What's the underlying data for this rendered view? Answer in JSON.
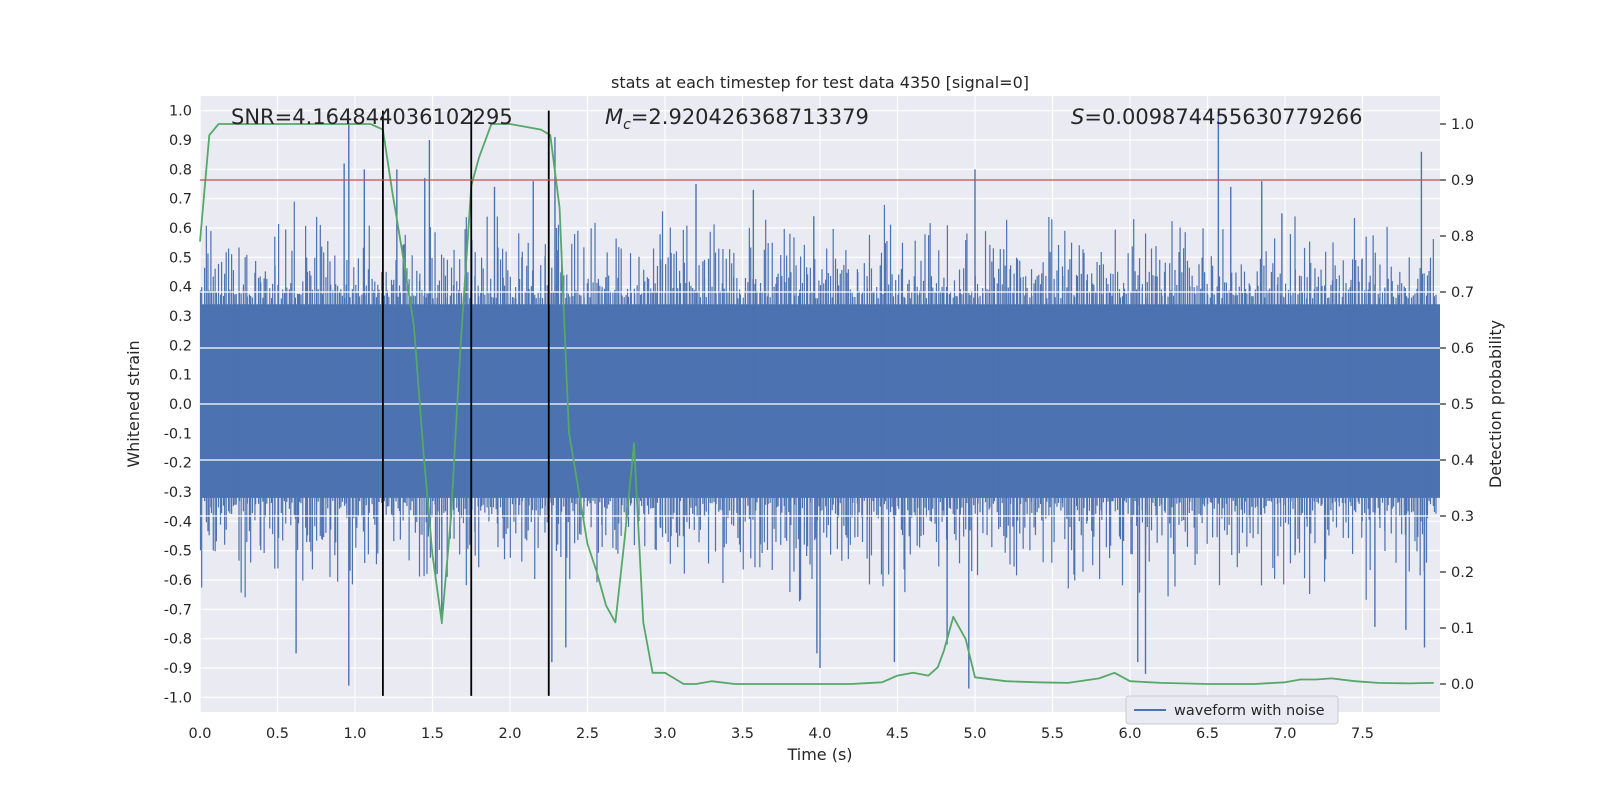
{
  "chart_data": {
    "type": "line",
    "title": "stats at each timestep for test data 4350 [signal=0]",
    "xlabel": "Time (s)",
    "ylabel_left": "Whitened strain",
    "ylabel_right": "Detection probability",
    "xlim": [
      0.0,
      8.0
    ],
    "ylim_left": [
      -1.05,
      1.05
    ],
    "ylim_right": [
      -0.05,
      1.05
    ],
    "grid": true,
    "x_ticks": [
      "0.0",
      "0.5",
      "1.0",
      "1.5",
      "2.0",
      "2.5",
      "3.0",
      "3.5",
      "4.0",
      "4.5",
      "5.0",
      "5.5",
      "6.0",
      "6.5",
      "7.0",
      "7.5"
    ],
    "y_left_ticks": [
      "1.0",
      "0.9",
      "0.8",
      "0.7",
      "0.6",
      "0.5",
      "0.4",
      "0.3",
      "0.2",
      "0.1",
      "0.0",
      "-0.1",
      "-0.2",
      "-0.3",
      "-0.4",
      "-0.5",
      "-0.6",
      "-0.7",
      "-0.8",
      "-0.9",
      "-1.0"
    ],
    "y_right_ticks": [
      "1.0",
      "0.9",
      "0.8",
      "0.7",
      "0.6",
      "0.5",
      "0.4",
      "0.3",
      "0.2",
      "0.1",
      "0.0"
    ],
    "annotations": {
      "snr": "SNR=4.164844036102295",
      "mc_symbol": "M",
      "mc_sub": "c",
      "mc_value": "=2.920426368713379",
      "s_symbol": "S",
      "s_value": "=0.009874455630779266"
    },
    "threshold": {
      "axis": "right",
      "value": 0.9,
      "color": "#c44e52"
    },
    "vertical_lines": [
      1.18,
      1.75,
      2.25
    ],
    "legend": {
      "label": "waveform with noise",
      "location": "lower-right",
      "color": "#4c72b0"
    },
    "series": [
      {
        "name": "waveform with noise",
        "axis": "left",
        "color": "#4c72b0",
        "core_band": [
          -0.4,
          0.42
        ],
        "spikes": [
          [
            0.96,
            0.96
          ],
          [
            0.96,
            -0.96
          ],
          [
            1.27,
            0.8
          ],
          [
            1.48,
            0.9
          ],
          [
            1.52,
            -0.6
          ],
          [
            1.56,
            -0.75
          ],
          [
            2.29,
            0.91
          ],
          [
            2.27,
            -0.88
          ],
          [
            2.15,
            0.76
          ],
          [
            2.36,
            -0.83
          ],
          [
            3.2,
            0.75
          ],
          [
            3.57,
            0.73
          ],
          [
            3.98,
            -0.85
          ],
          [
            4.0,
            -0.9
          ],
          [
            4.48,
            -0.88
          ],
          [
            4.82,
            -0.82
          ],
          [
            4.96,
            -0.97
          ],
          [
            5.0,
            0.8
          ],
          [
            6.05,
            -0.88
          ],
          [
            6.1,
            -0.92
          ],
          [
            6.57,
            1.0
          ],
          [
            6.65,
            0.74
          ],
          [
            6.85,
            0.76
          ],
          [
            7.58,
            -0.76
          ],
          [
            7.78,
            -0.77
          ],
          [
            7.88,
            0.86
          ],
          [
            7.9,
            -0.83
          ],
          [
            0.62,
            -0.85
          ],
          [
            0.93,
            0.82
          ],
          [
            1.06,
            0.8
          ],
          [
            1.45,
            0.77
          ],
          [
            1.9,
            0.74
          ],
          [
            2.3,
            0.6
          ],
          [
            3.96,
            0.64
          ],
          [
            6.98,
            0.65
          ]
        ]
      },
      {
        "name": "detection probability",
        "axis": "right",
        "color": "#55a868",
        "x": [
          0.0,
          0.06,
          0.12,
          0.2,
          0.5,
          0.8,
          1.0,
          1.1,
          1.18,
          1.24,
          1.3,
          1.38,
          1.44,
          1.5,
          1.56,
          1.62,
          1.68,
          1.75,
          1.8,
          1.88,
          2.0,
          2.2,
          2.26,
          2.32,
          2.38,
          2.44,
          2.5,
          2.56,
          2.62,
          2.68,
          2.74,
          2.8,
          2.86,
          2.92,
          3.0,
          3.06,
          3.12,
          3.2,
          3.3,
          3.45,
          3.6,
          3.8,
          4.0,
          4.2,
          4.4,
          4.5,
          4.6,
          4.7,
          4.76,
          4.8,
          4.86,
          4.94,
          5.0,
          5.2,
          5.4,
          5.6,
          5.8,
          5.9,
          6.0,
          6.2,
          6.5,
          6.8,
          7.0,
          7.1,
          7.2,
          7.3,
          7.45,
          7.6,
          7.8,
          7.96
        ],
        "y": [
          0.79,
          0.98,
          1.0,
          1.0,
          1.0,
          1.0,
          1.0,
          1.0,
          0.99,
          0.88,
          0.78,
          0.64,
          0.42,
          0.23,
          0.11,
          0.3,
          0.6,
          0.89,
          0.94,
          1.0,
          1.0,
          0.99,
          0.98,
          0.85,
          0.45,
          0.35,
          0.25,
          0.2,
          0.14,
          0.11,
          0.26,
          0.43,
          0.11,
          0.02,
          0.02,
          0.01,
          0.0,
          0.0,
          0.005,
          0.0,
          0.0,
          0.0,
          0.0,
          0.0,
          0.003,
          0.015,
          0.02,
          0.015,
          0.03,
          0.06,
          0.12,
          0.08,
          0.012,
          0.005,
          0.003,
          0.002,
          0.01,
          0.02,
          0.005,
          0.002,
          0.0,
          0.0,
          0.003,
          0.008,
          0.008,
          0.01,
          0.005,
          0.002,
          0.001,
          0.002
        ]
      }
    ]
  }
}
